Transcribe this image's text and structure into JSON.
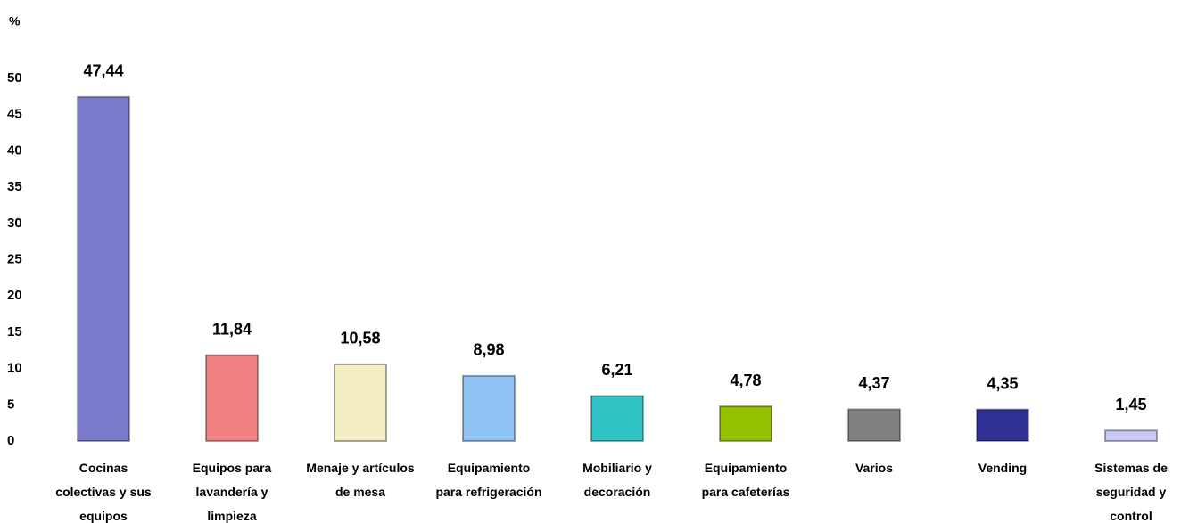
{
  "chart_data": {
    "type": "bar",
    "y_label": "%",
    "categories": [
      "Cocinas colectivas y sus equipos",
      "Equipos para lavandería y limpieza",
      "Menaje y artículos de mesa",
      "Equipamiento para refrigeración",
      "Mobiliario y decoración",
      "Equipamiento para cafeterías",
      "Varios",
      "Vending",
      "Sistemas de seguridad y control"
    ],
    "values": [
      47.44,
      11.84,
      10.58,
      8.98,
      6.21,
      4.78,
      4.37,
      4.35,
      1.45
    ],
    "value_labels": [
      "47,44",
      "11,84",
      "10,58",
      "8,98",
      "6,21",
      "4,78",
      "4,37",
      "4,35",
      "1,45"
    ],
    "colors": [
      "#7b7bcc",
      "#f08080",
      "#f3eec4",
      "#90c4f4",
      "#30c4c4",
      "#94c000",
      "#808080",
      "#303094",
      "#c8c8f8"
    ],
    "ylim": [
      0,
      50
    ],
    "yticks": [
      0,
      5,
      10,
      15,
      20,
      25,
      30,
      35,
      40,
      45,
      50
    ],
    "grid": false
  }
}
